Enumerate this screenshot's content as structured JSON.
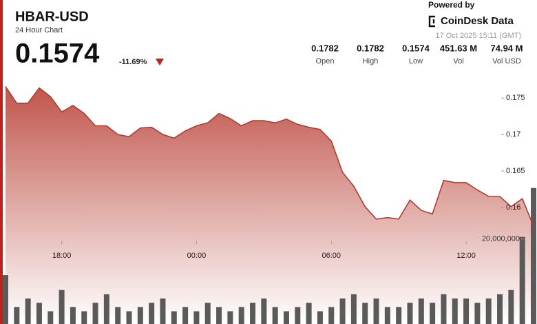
{
  "header": {
    "title": "HBAR-USD",
    "subtitle": "24 Hour Chart",
    "price": "0.1574",
    "change": "-11.69%",
    "powered_by": "Powered by",
    "brand": "CoinDesk Data",
    "timestamp": "17 Oct 2025 15:11 (GMT)",
    "stats": [
      {
        "value": "0.1782",
        "label": "Open"
      },
      {
        "value": "0.1782",
        "label": "High"
      },
      {
        "value": "0.1574",
        "label": "Low"
      },
      {
        "value": "451.63 M",
        "label": "Vol"
      },
      {
        "value": "74.94 M",
        "label": "Vol USD"
      }
    ]
  },
  "chart_data": {
    "type": "area",
    "color": "#b03a2e",
    "volume_color": "#5a5a5a",
    "categories": [
      null,
      null,
      null,
      null,
      null,
      "18:00",
      null,
      null,
      null,
      null,
      null,
      null,
      null,
      null,
      null,
      null,
      null,
      "00:00",
      null,
      null,
      null,
      null,
      null,
      null,
      null,
      null,
      null,
      null,
      null,
      "06:00",
      null,
      null,
      null,
      null,
      null,
      null,
      null,
      null,
      null,
      null,
      null,
      "12:00",
      null,
      null,
      null,
      null,
      null,
      null
    ],
    "values": [
      0.1766,
      0.1743,
      0.1743,
      0.1764,
      0.1752,
      0.1731,
      0.174,
      0.1729,
      0.1712,
      0.1712,
      0.17,
      0.1697,
      0.1709,
      0.171,
      0.17,
      0.1695,
      0.1705,
      0.1712,
      0.1716,
      0.1729,
      0.1722,
      0.1712,
      0.1719,
      0.1719,
      0.1716,
      0.1721,
      0.1714,
      0.171,
      0.1707,
      0.1691,
      0.1648,
      0.1629,
      0.1601,
      0.1584,
      0.1586,
      0.1584,
      0.161,
      0.1596,
      0.1591,
      0.1637,
      0.1634,
      0.1634,
      0.1624,
      0.1615,
      0.1615,
      0.1601,
      0.1612,
      0.1574
    ],
    "volumes": [
      11500000,
      4000000,
      6000000,
      5000000,
      3000000,
      8000000,
      4000000,
      3000000,
      5000000,
      7000000,
      4000000,
      3000000,
      4000000,
      5000000,
      6000000,
      3000000,
      4000000,
      3000000,
      5000000,
      4000000,
      3000000,
      4000000,
      5000000,
      6000000,
      4000000,
      3000000,
      4000000,
      5000000,
      3000000,
      4000000,
      6000000,
      7000000,
      5000000,
      6000000,
      4000000,
      4000000,
      5000000,
      6000000,
      5000000,
      7000000,
      6000000,
      6000000,
      5000000,
      6000000,
      7000000,
      8000000,
      20500000,
      32000000
    ],
    "ylim": [
      0.144,
      0.179
    ],
    "yticks": [
      0.16,
      0.165,
      0.17,
      0.175
    ],
    "y2lim": [
      0,
      60000000
    ],
    "y2ticks": [
      {
        "value": 20000000,
        "label": "20,000,000"
      }
    ]
  }
}
